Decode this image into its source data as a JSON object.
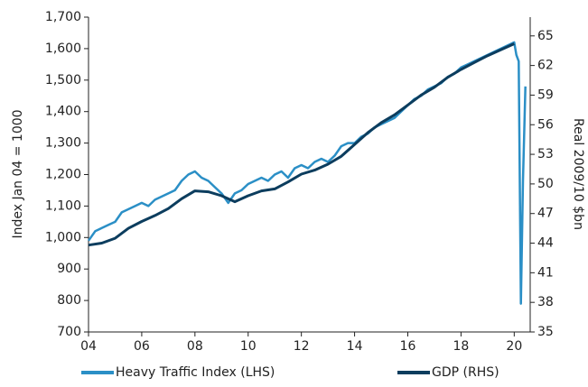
{
  "chart_data": {
    "type": "line",
    "ylabel": "Index Jan 04 = 1000",
    "y2label": "Real 2009/10 $bn",
    "xlim": [
      2004,
      2020.6
    ],
    "xticks": [
      {
        "value": 2004,
        "label": "04"
      },
      {
        "value": 2006,
        "label": "06"
      },
      {
        "value": 2008,
        "label": "08"
      },
      {
        "value": 2010,
        "label": "10"
      },
      {
        "value": 2012,
        "label": "12"
      },
      {
        "value": 2014,
        "label": "14"
      },
      {
        "value": 2016,
        "label": "16"
      },
      {
        "value": 2018,
        "label": "18"
      },
      {
        "value": 2020,
        "label": "20"
      }
    ],
    "ylim": [
      700,
      1700
    ],
    "yticks": [
      700,
      800,
      900,
      {
        "value": 1000,
        "label": "1,000"
      },
      {
        "value": 1100,
        "label": "1,100"
      },
      {
        "value": 1200,
        "label": "1,200"
      },
      {
        "value": 1300,
        "label": "1,300"
      },
      {
        "value": 1400,
        "label": "1,400"
      },
      {
        "value": 1500,
        "label": "1,500"
      },
      {
        "value": 1600,
        "label": "1,600"
      },
      {
        "value": 1700,
        "label": "1,700"
      }
    ],
    "y2lim": [
      35,
      66.9
    ],
    "y2ticks": [
      35,
      38,
      41,
      44,
      47,
      50,
      53,
      56,
      59,
      62,
      65
    ],
    "legend": "bottom",
    "series": [
      {
        "name": "Heavy Traffic Index (LHS)",
        "color": "#2b8fc6",
        "x": [
          2004,
          2004.25,
          2004.5,
          2004.75,
          2005,
          2005.25,
          2005.5,
          2005.75,
          2006,
          2006.25,
          2006.5,
          2006.75,
          2007,
          2007.25,
          2007.5,
          2007.75,
          2008,
          2008.25,
          2008.5,
          2008.75,
          2009,
          2009.25,
          2009.5,
          2009.75,
          2010,
          2010.25,
          2010.5,
          2010.75,
          2011,
          2011.25,
          2011.5,
          2011.75,
          2012,
          2012.25,
          2012.5,
          2012.75,
          2013,
          2013.25,
          2013.5,
          2013.75,
          2014,
          2014.25,
          2014.5,
          2014.75,
          2015,
          2015.25,
          2015.5,
          2015.75,
          2016,
          2016.25,
          2016.5,
          2016.75,
          2017,
          2017.25,
          2017.5,
          2017.75,
          2018,
          2018.25,
          2018.5,
          2018.75,
          2019,
          2019.25,
          2019.5,
          2019.75,
          2020,
          2020.08,
          2020.17,
          2020.25,
          2020.33,
          2020.42
        ],
        "values": [
          990,
          1020,
          1030,
          1040,
          1050,
          1080,
          1090,
          1100,
          1110,
          1100,
          1120,
          1130,
          1140,
          1150,
          1180,
          1200,
          1210,
          1190,
          1180,
          1160,
          1140,
          1110,
          1140,
          1150,
          1170,
          1180,
          1190,
          1180,
          1200,
          1210,
          1190,
          1220,
          1230,
          1220,
          1240,
          1250,
          1240,
          1260,
          1290,
          1300,
          1300,
          1320,
          1330,
          1350,
          1360,
          1370,
          1380,
          1400,
          1420,
          1440,
          1450,
          1470,
          1480,
          1490,
          1510,
          1520,
          1540,
          1550,
          1560,
          1570,
          1580,
          1590,
          1600,
          1610,
          1620,
          1580,
          1560,
          790,
          1180,
          1480
        ]
      },
      {
        "name": "GDP (RHS)",
        "color": "#0c3d5e",
        "axis": "y2",
        "x": [
          2004,
          2004.5,
          2005,
          2005.5,
          2006,
          2006.5,
          2007,
          2007.5,
          2008,
          2008.5,
          2009,
          2009.5,
          2010,
          2010.5,
          2011,
          2011.5,
          2012,
          2012.5,
          2013,
          2013.5,
          2014,
          2014.5,
          2015,
          2015.5,
          2016,
          2016.5,
          2017,
          2017.5,
          2018,
          2018.5,
          2019,
          2019.5,
          2020
        ],
        "values": [
          43.8,
          44,
          44.5,
          45.5,
          46.2,
          46.8,
          47.5,
          48.5,
          49.3,
          49.2,
          48.8,
          48.2,
          48.8,
          49.3,
          49.5,
          50.2,
          51,
          51.4,
          52,
          52.8,
          54,
          55.2,
          56.2,
          57,
          58,
          59,
          59.8,
          60.8,
          61.6,
          62.3,
          63,
          63.6,
          64.2
        ]
      }
    ]
  }
}
